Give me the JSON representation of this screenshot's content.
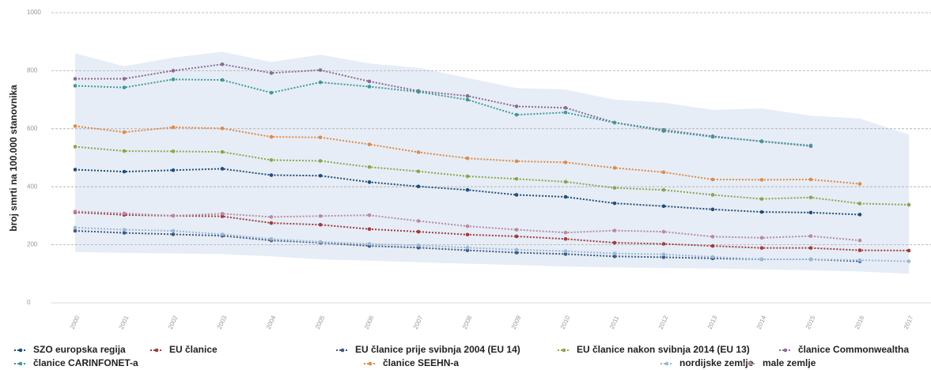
{
  "chart_data": {
    "type": "line",
    "y_label": "broj smrti na 100.000 stanovnika",
    "categories": [
      "2000",
      "2001",
      "2002",
      "2003",
      "2004",
      "2005",
      "2006",
      "2007",
      "2008",
      "2009",
      "2010",
      "2011",
      "2012",
      "2013",
      "2014",
      "2015",
      "2016",
      "2017"
    ],
    "ylim": [
      0,
      1000
    ],
    "yticks": [
      0,
      200,
      400,
      600,
      800,
      1000
    ],
    "grid": true,
    "range_upper": [
      860,
      815,
      845,
      865,
      830,
      855,
      825,
      810,
      775,
      740,
      735,
      700,
      690,
      665,
      670,
      645,
      635,
      580
    ],
    "range_lower": [
      175,
      172,
      170,
      168,
      160,
      150,
      145,
      140,
      135,
      130,
      125,
      122,
      120,
      118,
      115,
      112,
      108,
      100
    ],
    "range_color": "#e6edf6",
    "series": [
      {
        "name": "SZO europska regija",
        "color": "#1f4e79",
        "values": [
          459,
          452,
          457,
          462,
          440,
          438,
          416,
          401,
          389,
          372,
          365,
          343,
          333,
          322,
          313,
          311,
          304,
          null
        ]
      },
      {
        "name": "EU članice",
        "color": "#a33b3b",
        "values": [
          312,
          303,
          300,
          298,
          275,
          269,
          254,
          245,
          235,
          229,
          220,
          207,
          203,
          196,
          189,
          189,
          181,
          180
        ]
      },
      {
        "name": "EU članice prije svibnja 2004 (EU 14)",
        "color": "#3d5a80",
        "values": [
          248,
          241,
          236,
          231,
          215,
          207,
          196,
          190,
          181,
          173,
          168,
          160,
          157,
          153,
          150,
          150,
          143,
          null
        ]
      },
      {
        "name": "EU članice nakon svibnja 2014 (EU 13)",
        "color": "#8aa64a",
        "values": [
          538,
          523,
          522,
          520,
          492,
          489,
          468,
          453,
          436,
          427,
          417,
          396,
          389,
          372,
          358,
          363,
          342,
          338
        ]
      },
      {
        "name": "članice Commonwealtha",
        "color": "#8a6b94",
        "values": [
          772,
          772,
          800,
          822,
          792,
          802,
          763,
          730,
          713,
          677,
          672,
          621,
          596,
          574,
          556,
          540,
          null,
          null
        ]
      },
      {
        "name": "članice CARINFONET-a",
        "color": "#3d9a9a",
        "values": [
          748,
          742,
          770,
          768,
          724,
          760,
          745,
          727,
          700,
          648,
          656,
          621,
          592,
          572,
          557,
          542,
          null,
          null
        ]
      },
      {
        "name": "članice SEEHN-a",
        "color": "#e08a45",
        "values": [
          609,
          588,
          605,
          601,
          572,
          570,
          546,
          519,
          498,
          488,
          484,
          465,
          450,
          425,
          424,
          425,
          410,
          null
        ]
      },
      {
        "name": "nordijske zemlje",
        "color": "#9ab8d6",
        "values": [
          259,
          252,
          248,
          236,
          220,
          210,
          203,
          198,
          190,
          183,
          178,
          170,
          167,
          158,
          150,
          150,
          147,
          143
        ]
      },
      {
        "name": "male zemlje",
        "color": "#b88aa0",
        "values": [
          315,
          308,
          300,
          307,
          296,
          299,
          302,
          282,
          264,
          252,
          242,
          249,
          245,
          228,
          224,
          230,
          215,
          null
        ]
      }
    ]
  }
}
